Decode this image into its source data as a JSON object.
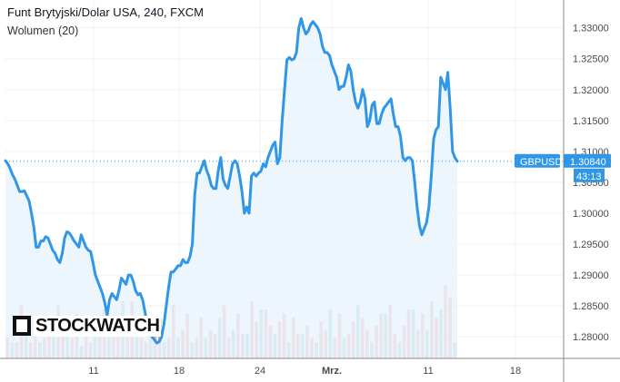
{
  "header": {
    "title": "Funt Brytyjski/Dolar USA, 240, FXCM",
    "volume_label": "Wolumen (20)"
  },
  "logo": {
    "text": "STOCKWATCH"
  },
  "price_tag": {
    "symbol": "GBPUSD",
    "price": "1.30840",
    "countdown": "43:13"
  },
  "colors": {
    "line": "#2f96e8",
    "area": "#e8f2fc",
    "vol_up": "#80cbc4",
    "vol_down": "#ef9a9a",
    "tag_bg": "#2f96e8",
    "price_dotted": "#2f96e8"
  },
  "chart_data": {
    "type": "line",
    "x_labels": [
      "11",
      "18",
      "24",
      "Mrz.",
      "11",
      "18"
    ],
    "y_ticks": [
      "1.33000",
      "1.32500",
      "1.32000",
      "1.31500",
      "1.31000",
      "1.30500",
      "1.30000",
      "1.29500",
      "1.29000",
      "1.28500",
      "1.28000"
    ],
    "ylim": [
      1.2765,
      1.3345
    ],
    "last_price": 1.3084,
    "series": [
      {
        "values": [
          1.3085,
          1.308,
          1.3072,
          1.3062,
          1.3055,
          1.3045,
          1.3035,
          1.3035,
          1.3036,
          1.3028,
          1.302,
          1.3,
          1.2978,
          1.2945,
          1.2945,
          1.2955,
          1.2955,
          1.2962,
          1.296,
          1.295,
          1.294,
          1.2935,
          1.2925,
          1.292,
          1.2935,
          1.296,
          1.297,
          1.2968,
          1.2962,
          1.2955,
          1.295,
          1.2945,
          1.2965,
          1.2955,
          1.2945,
          1.294,
          1.2938,
          1.292,
          1.29,
          1.289,
          1.288,
          1.287,
          1.2855,
          1.2835,
          1.286,
          1.287,
          1.2865,
          1.286,
          1.2875,
          1.2895,
          1.289,
          1.2885,
          1.29,
          1.29,
          1.289,
          1.2875,
          1.2868,
          1.287,
          1.286,
          1.284,
          1.282,
          1.281,
          1.28,
          1.2795,
          1.279,
          1.2792,
          1.28,
          1.282,
          1.285,
          1.288,
          1.2905,
          1.2905,
          1.291,
          1.2915,
          1.2915,
          1.2925,
          1.292,
          1.292,
          1.293,
          1.295,
          1.303,
          1.3065,
          1.3065,
          1.3075,
          1.3085,
          1.307,
          1.306,
          1.3045,
          1.304,
          1.304,
          1.307,
          1.309,
          1.3055,
          1.3045,
          1.304,
          1.306,
          1.308,
          1.3085,
          1.308,
          1.306,
          1.3035,
          1.3,
          1.301,
          1.3,
          1.306,
          1.3065,
          1.306,
          1.3065,
          1.3068,
          1.308,
          1.3075,
          1.309,
          1.31,
          1.311,
          1.3115,
          1.308,
          1.309,
          1.315,
          1.32,
          1.3248,
          1.3252,
          1.3248,
          1.325,
          1.326,
          1.33,
          1.3315,
          1.33,
          1.329,
          1.3295,
          1.3305,
          1.331,
          1.3305,
          1.33,
          1.329,
          1.327,
          1.326,
          1.326,
          1.3255,
          1.324,
          1.323,
          1.322,
          1.32,
          1.3205,
          1.3205,
          1.322,
          1.324,
          1.323,
          1.32,
          1.318,
          1.317,
          1.318,
          1.32,
          1.3185,
          1.314,
          1.315,
          1.3175,
          1.318,
          1.3145,
          1.3145,
          1.316,
          1.317,
          1.3175,
          1.318,
          1.3185,
          1.316,
          1.314,
          1.314,
          1.3125,
          1.309,
          1.3085,
          1.309,
          1.309,
          1.3085,
          1.305,
          1.301,
          1.298,
          1.2965,
          1.2975,
          1.2985,
          1.301,
          1.306,
          1.312,
          1.3135,
          1.314,
          1.322,
          1.321,
          1.32,
          1.3228,
          1.317,
          1.31,
          1.309,
          1.3084
        ]
      }
    ],
    "volume": {
      "up": [
        3,
        4,
        3,
        5,
        8,
        12,
        6,
        4,
        5,
        3,
        7,
        9,
        4,
        6,
        8,
        5,
        3,
        4,
        10,
        7,
        5,
        4,
        6,
        8,
        12,
        14,
        9,
        4,
        6,
        3,
        5,
        7,
        8,
        6,
        4,
        9,
        11,
        5,
        6,
        12,
        4,
        7,
        3,
        5,
        8,
        6,
        10,
        4,
        5,
        7,
        9,
        3,
        6,
        5,
        8,
        12,
        7,
        4,
        6,
        9,
        5,
        4,
        8,
        11,
        6,
        10,
        5,
        4,
        7,
        9,
        12,
        6,
        3,
        5,
        8,
        10,
        13,
        7,
        5,
        4,
        6,
        9,
        11,
        8,
        5,
        4,
        7,
        10,
        12,
        9,
        5,
        7,
        9,
        6,
        12,
        10,
        8,
        4
      ],
      "down": [
        5,
        10,
        4,
        13,
        7,
        4,
        9,
        12,
        5,
        8,
        4,
        13,
        7,
        9,
        5,
        11,
        6,
        8,
        4,
        10,
        7,
        12,
        5,
        9,
        6,
        11,
        8,
        14,
        9,
        5,
        4,
        12,
        6,
        10,
        8,
        5,
        13,
        9,
        7,
        11,
        8,
        5,
        10,
        12,
        7,
        6,
        9,
        13,
        5,
        8,
        11,
        6,
        10,
        14,
        9,
        7,
        12,
        8,
        4,
        9,
        11,
        7,
        10,
        6,
        13,
        8,
        5,
        10,
        9,
        7,
        12,
        5,
        11,
        8,
        6,
        9,
        12,
        10,
        7,
        5,
        8,
        11,
        9,
        13,
        6,
        10,
        8,
        12,
        9,
        7,
        11,
        6,
        14,
        10,
        7,
        18,
        15,
        9
      ]
    }
  }
}
